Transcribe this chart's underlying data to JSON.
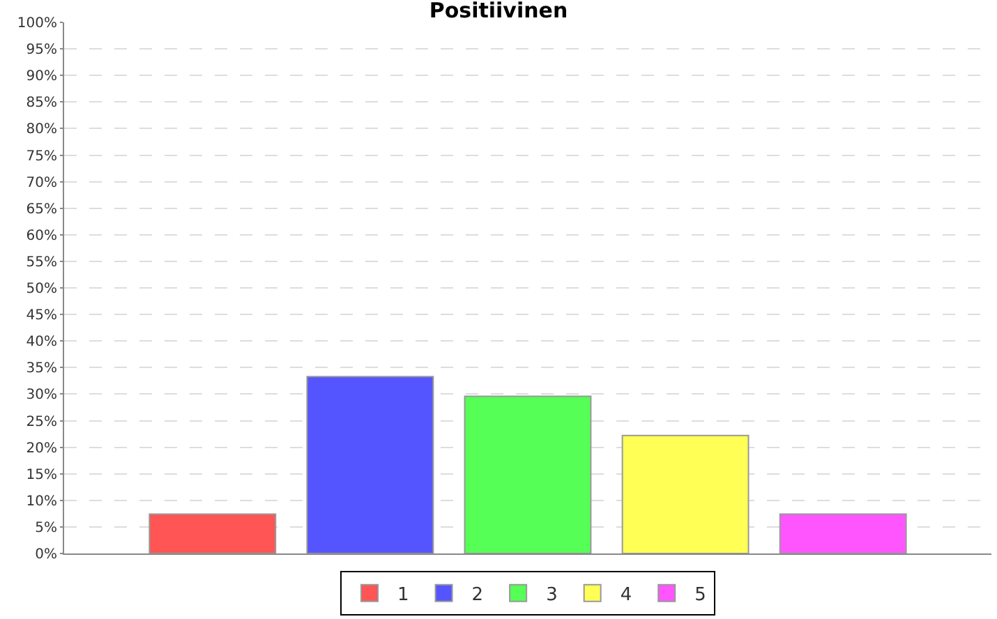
{
  "chart_data": {
    "type": "bar",
    "title": "Positiivinen",
    "categories": [
      null
    ],
    "series": [
      {
        "name": "1",
        "color": "#ff5555",
        "values": [
          7.4
        ]
      },
      {
        "name": "2",
        "color": "#5555ff",
        "values": [
          33.3
        ]
      },
      {
        "name": "3",
        "color": "#55ff55",
        "values": [
          29.6
        ]
      },
      {
        "name": "4",
        "color": "#ffff55",
        "values": [
          22.2
        ]
      },
      {
        "name": "5",
        "color": "#ff55ff",
        "values": [
          7.4
        ]
      }
    ],
    "ylim": [
      0,
      100
    ],
    "yticks": [
      {
        "value": 0,
        "label": "0%"
      },
      {
        "value": 5,
        "label": "5%"
      },
      {
        "value": 10,
        "label": "10%"
      },
      {
        "value": 15,
        "label": "15%"
      },
      {
        "value": 20,
        "label": "20%"
      },
      {
        "value": 25,
        "label": "25%"
      },
      {
        "value": 30,
        "label": "30%"
      },
      {
        "value": 35,
        "label": "35%"
      },
      {
        "value": 40,
        "label": "40%"
      },
      {
        "value": 45,
        "label": "45%"
      },
      {
        "value": 50,
        "label": "50%"
      },
      {
        "value": 55,
        "label": "55%"
      },
      {
        "value": 60,
        "label": "60%"
      },
      {
        "value": 65,
        "label": "65%"
      },
      {
        "value": 70,
        "label": "70%"
      },
      {
        "value": 75,
        "label": "75%"
      },
      {
        "value": 80,
        "label": "80%"
      },
      {
        "value": 85,
        "label": "85%"
      },
      {
        "value": 90,
        "label": "90%"
      },
      {
        "value": 95,
        "label": "95%"
      },
      {
        "value": 100,
        "label": "100%"
      }
    ],
    "grid": "y",
    "legend": "bottom",
    "tick_labels": "y"
  }
}
